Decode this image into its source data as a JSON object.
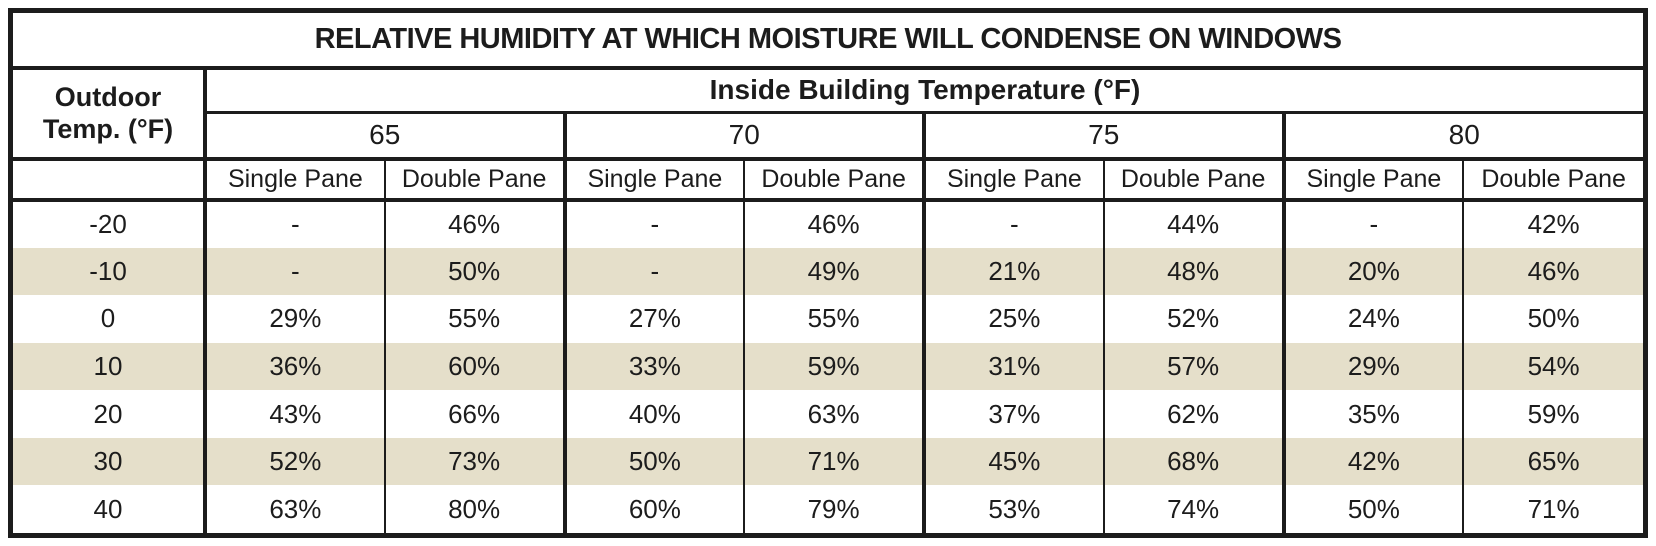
{
  "title": "RELATIVE HUMIDITY AT WHICH MOISTURE WILL CONDENSE ON WINDOWS",
  "header": {
    "row_axis_label": "Outdoor Temp. (°F)",
    "col_axis_label": "Inside Building Temperature (°F)",
    "temps": [
      "65",
      "70",
      "75",
      "80"
    ],
    "pane_types": [
      "Single Pane",
      "Double Pane"
    ]
  },
  "chart_data": {
    "type": "table",
    "title": "RELATIVE HUMIDITY AT WHICH MOISTURE WILL CONDENSE ON WINDOWS",
    "row_header": "Outdoor Temp. (°F)",
    "column_group_header": "Inside Building Temperature (°F)",
    "column_groups": [
      "65",
      "70",
      "75",
      "80"
    ],
    "sub_columns": [
      "Single Pane",
      "Double Pane"
    ],
    "rows": [
      {
        "temp": "-20",
        "values": [
          "-",
          "46%",
          "-",
          "46%",
          "-",
          "44%",
          "-",
          "42%"
        ]
      },
      {
        "temp": "-10",
        "values": [
          "-",
          "50%",
          "-",
          "49%",
          "21%",
          "48%",
          "20%",
          "46%"
        ]
      },
      {
        "temp": "0",
        "values": [
          "29%",
          "55%",
          "27%",
          "55%",
          "25%",
          "52%",
          "24%",
          "50%"
        ]
      },
      {
        "temp": "10",
        "values": [
          "36%",
          "60%",
          "33%",
          "59%",
          "31%",
          "57%",
          "29%",
          "54%"
        ]
      },
      {
        "temp": "20",
        "values": [
          "43%",
          "66%",
          "40%",
          "63%",
          "37%",
          "62%",
          "35%",
          "59%"
        ]
      },
      {
        "temp": "30",
        "values": [
          "52%",
          "73%",
          "50%",
          "71%",
          "45%",
          "68%",
          "42%",
          "65%"
        ]
      },
      {
        "temp": "40",
        "values": [
          "63%",
          "80%",
          "60%",
          "79%",
          "53%",
          "74%",
          "50%",
          "71%"
        ]
      }
    ]
  },
  "colors": {
    "border": "#1c1c1c",
    "text": "#1c1c1c",
    "row-shade": "#e5dfca",
    "background": "#ffffff"
  }
}
